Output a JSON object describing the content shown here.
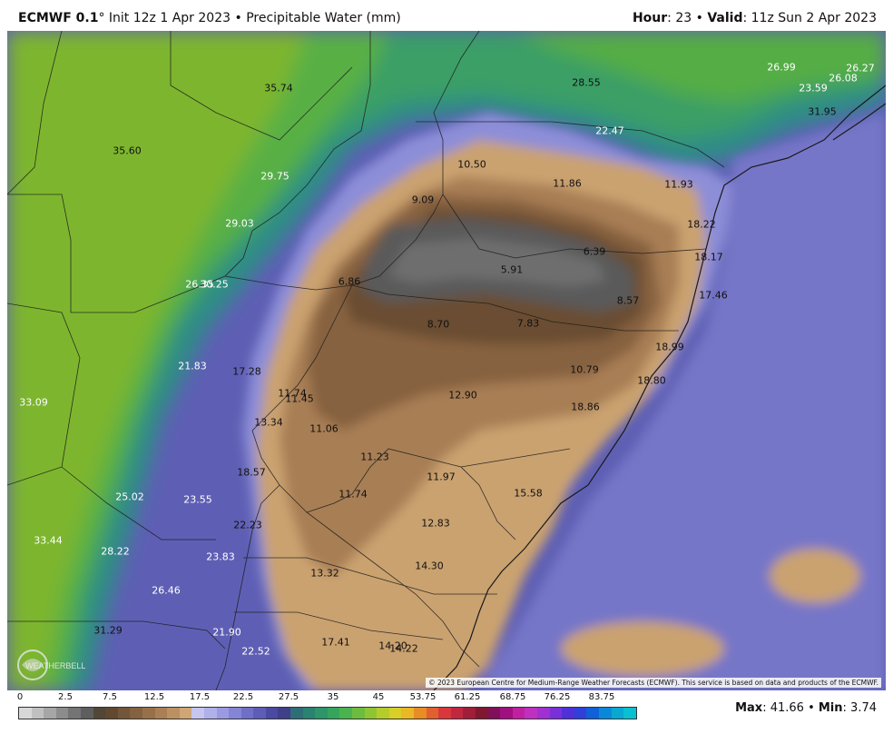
{
  "header": {
    "model": "ECMWF 0.1",
    "degree": "°",
    "init": " Init 12z 1 Apr 2023",
    "sep": " • ",
    "product": "Precipitable Water (mm)",
    "hour_label": "Hour",
    "hour_value": ": 23",
    "valid_label": "Valid",
    "valid_value": ": 11z Sun 2 Apr 2023"
  },
  "map_labels": [
    {
      "text": "35.74"
    },
    {
      "text": "28.55"
    },
    {
      "text": "26.99"
    },
    {
      "text": "26.27"
    },
    {
      "text": "26.08"
    },
    {
      "text": "23.59"
    },
    {
      "text": "31.95"
    },
    {
      "text": "35.60"
    },
    {
      "text": "22.47"
    },
    {
      "text": "10.50"
    },
    {
      "text": "29.75"
    },
    {
      "text": "11.86"
    },
    {
      "text": "11.93"
    },
    {
      "text": "9.09"
    },
    {
      "text": "29.03"
    },
    {
      "text": "18.22"
    },
    {
      "text": "6.39"
    },
    {
      "text": "18.17"
    },
    {
      "text": "5.91"
    },
    {
      "text": "26.35"
    },
    {
      "text": "30.25"
    },
    {
      "text": "6.86"
    },
    {
      "text": "17.46"
    },
    {
      "text": "8.57"
    },
    {
      "text": "8.70"
    },
    {
      "text": "7.83"
    },
    {
      "text": "18.99"
    },
    {
      "text": "21.83"
    },
    {
      "text": "17.28"
    },
    {
      "text": "10.79"
    },
    {
      "text": "18.80"
    },
    {
      "text": "11.74"
    },
    {
      "text": "11.45"
    },
    {
      "text": "12.90"
    },
    {
      "text": "18.86"
    },
    {
      "text": "33.09"
    },
    {
      "text": "13.34"
    },
    {
      "text": "11.06"
    },
    {
      "text": "11.23"
    },
    {
      "text": "18.57"
    },
    {
      "text": "11.97"
    },
    {
      "text": "11.74"
    },
    {
      "text": "15.58"
    },
    {
      "text": "25.02"
    },
    {
      "text": "23.55"
    },
    {
      "text": "22.23"
    },
    {
      "text": "12.83"
    },
    {
      "text": "33.44"
    },
    {
      "text": "28.22"
    },
    {
      "text": "23.83"
    },
    {
      "text": "13.32"
    },
    {
      "text": "14.30"
    },
    {
      "text": "26.46"
    },
    {
      "text": "31.29"
    },
    {
      "text": "21.90"
    },
    {
      "text": "17.41"
    },
    {
      "text": "14.20"
    },
    {
      "text": "14.22"
    },
    {
      "text": "22.52"
    }
  ],
  "logo_text": "WEATHERBELL",
  "copyright": "© 2023 European Centre for Medium-Range Weather Forecasts (ECMWF). This service is based on data and products of the ECMWF.",
  "legend": {
    "ticks": [
      "0",
      "2.5",
      "7.5",
      "12.5",
      "17.5",
      "22.5",
      "27.5",
      "35",
      "45",
      "53.75",
      "61.25",
      "68.75",
      "76.25",
      "83.75"
    ],
    "colors": [
      "#d8d8d8",
      "#c0c0c0",
      "#a6a6a6",
      "#8c8c8c",
      "#747474",
      "#5e5e5e",
      "#524636",
      "#61492f",
      "#72553a",
      "#84623f",
      "#977049",
      "#aa7f55",
      "#bc9161",
      "#cfa676",
      "#c5c5ef",
      "#b0b0ea",
      "#9a9ae2",
      "#8585d6",
      "#6f6fc8",
      "#5d5db8",
      "#4a4aa0",
      "#3f3f8a",
      "#2e6e76",
      "#2a8270",
      "#2e946a",
      "#35a55e",
      "#4bb250",
      "#6cbd3e",
      "#8fc532",
      "#b5cc2b",
      "#d8cf27",
      "#e8b825",
      "#e88c25",
      "#e06030",
      "#d8383c",
      "#c02840",
      "#a01e38",
      "#801830",
      "#80105a",
      "#a01080",
      "#c020a0",
      "#c030c0",
      "#a030d0",
      "#7a30d8",
      "#5030d8",
      "#3040d8",
      "#1060d8",
      "#0a88d8",
      "#08a8d0",
      "#08c0d0"
    ]
  },
  "stats": {
    "max_label": "Max",
    "max_value": ": 41.66",
    "sep": " • ",
    "min_label": "Min",
    "min_value": ": 3.74"
  }
}
